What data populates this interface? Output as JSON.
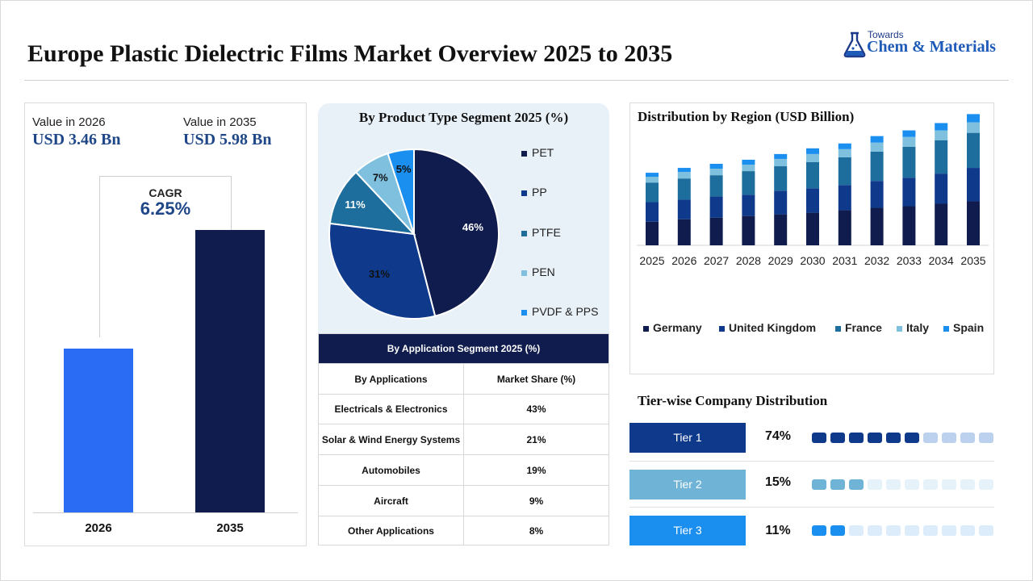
{
  "title": "Europe Plastic Dielectric Films Market Overview 2025 to 2035",
  "logo": {
    "small": "Towards",
    "brand": "Chem & Materials",
    "icon": "flask-icon"
  },
  "value_panel": {
    "label_2026": "Value in 2026",
    "value_2026": "USD 3.46 Bn",
    "label_2035": "Value in 2035",
    "value_2035": "USD 5.98 Bn",
    "cagr_label": "CAGR",
    "cagr_value": "6.25%"
  },
  "pie_legend": [
    "PET",
    "PP",
    "PTFE",
    "PEN",
    "PVDF & PPS"
  ],
  "application_table": {
    "title": "By Application Segment 2025 (%)",
    "col_1": "By Applications",
    "col_2": "Market Share (%)",
    "rows": [
      {
        "app": "Electricals & Electronics",
        "share": "43%"
      },
      {
        "app": "Solar & Wind Energy Systems",
        "share": "21%"
      },
      {
        "app": "Automobiles",
        "share": "19%"
      },
      {
        "app": "Aircraft",
        "share": "9%"
      },
      {
        "app": "Other Applications",
        "share": "8%"
      }
    ]
  },
  "tiers": {
    "title": "Tier-wise Company Distribution",
    "items": [
      {
        "label": "Tier 1",
        "pct": "74%",
        "filled": 6,
        "total": 10,
        "color": "#0f3a8c",
        "light": "#bcd1ee"
      },
      {
        "label": "Tier 2",
        "pct": "15%",
        "filled": 3,
        "total": 10,
        "color": "#6fb4d6",
        "light": "#e6f2fa"
      },
      {
        "label": "Tier 3",
        "pct": "11%",
        "filled": 2,
        "total": 10,
        "color": "#1a8ff0",
        "light": "#dcecfb"
      }
    ]
  },
  "chart_data": [
    {
      "type": "bar",
      "title": "",
      "categories": [
        "2026",
        "2035"
      ],
      "values": [
        3.46,
        5.98
      ],
      "colors": [
        "#2a6df4",
        "#0f1c4d"
      ]
    },
    {
      "type": "pie",
      "title": "By Product Type Segment 2025 (%)",
      "labels": [
        "PET",
        "PP",
        "PTFE",
        "PEN",
        "PVDF & PPS"
      ],
      "values": [
        46,
        31,
        11,
        7,
        5
      ],
      "colors": [
        "#0f1c4d",
        "#0f3a8c",
        "#1d6e9c",
        "#7ec0de",
        "#1a8ff0"
      ],
      "legend": "right"
    },
    {
      "type": "bar",
      "stacked": true,
      "title": "Distribution by Region (USD Billion)",
      "categories": [
        "2025",
        "2026",
        "2027",
        "2028",
        "2029",
        "2030",
        "2031",
        "2032",
        "2033",
        "2034",
        "2035"
      ],
      "series": [
        {
          "name": "Germany",
          "color": "#0f1c4d",
          "values": [
            29,
            32,
            34,
            36,
            38,
            40,
            43,
            46,
            48,
            51,
            54
          ]
        },
        {
          "name": "United Kingdom",
          "color": "#0f3a8c",
          "values": [
            24,
            24,
            26,
            26,
            29,
            30,
            31,
            33,
            35,
            37,
            41
          ]
        },
        {
          "name": "France",
          "color": "#1d6e9c",
          "values": [
            24,
            26,
            26,
            29,
            30,
            32,
            34,
            36,
            38,
            41,
            43
          ]
        },
        {
          "name": "Italy",
          "color": "#7ec0de",
          "values": [
            7,
            8,
            8,
            8,
            9,
            10,
            10,
            11,
            12,
            12,
            13
          ]
        },
        {
          "name": "Spain",
          "color": "#1a8ff0",
          "values": [
            5,
            5,
            6,
            6,
            6,
            7,
            7,
            8,
            8,
            9,
            10
          ]
        }
      ],
      "legend": "bottom"
    }
  ]
}
